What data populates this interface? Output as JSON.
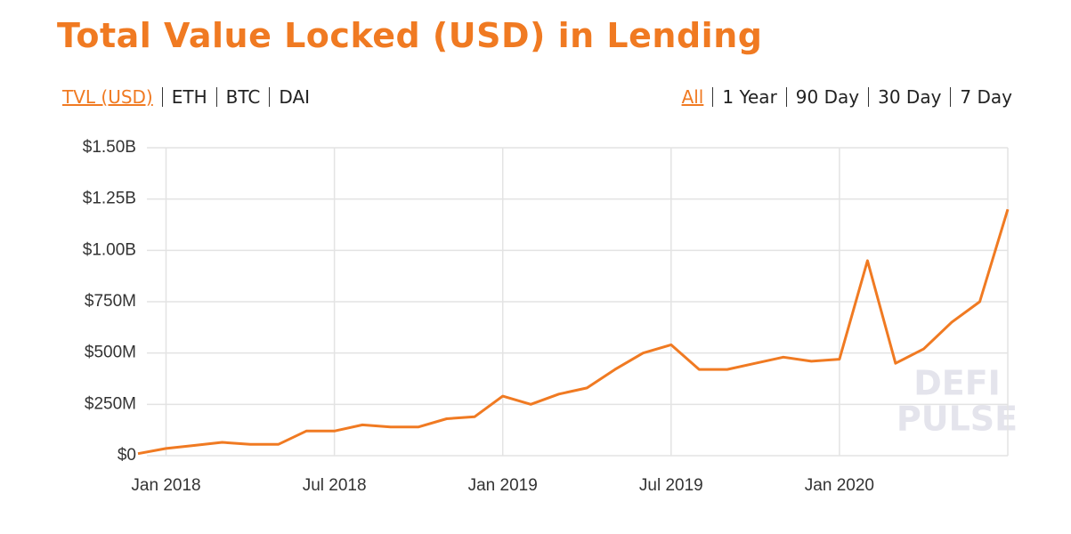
{
  "chart_data": {
    "type": "line",
    "title": "Total Value Locked (USD) in Lending",
    "x": [
      "2017-12",
      "2018-01",
      "2018-02",
      "2018-03",
      "2018-04",
      "2018-05",
      "2018-06",
      "2018-07",
      "2018-08",
      "2018-09",
      "2018-10",
      "2018-11",
      "2018-12",
      "2019-01",
      "2019-02",
      "2019-03",
      "2019-04",
      "2019-05",
      "2019-06",
      "2019-07",
      "2019-08",
      "2019-09",
      "2019-10",
      "2019-11",
      "2019-12",
      "2020-01",
      "2020-02",
      "2020-03",
      "2020-04",
      "2020-05",
      "2020-06",
      "2020-07"
    ],
    "series": [
      {
        "name": "TVL (USD)",
        "color": "#f07a22",
        "values": [
          10000000,
          35000000,
          50000000,
          65000000,
          55000000,
          55000000,
          120000000,
          120000000,
          150000000,
          140000000,
          140000000,
          180000000,
          190000000,
          290000000,
          250000000,
          300000000,
          330000000,
          420000000,
          500000000,
          540000000,
          420000000,
          420000000,
          450000000,
          480000000,
          460000000,
          470000000,
          950000000,
          450000000,
          520000000,
          650000000,
          750000000,
          1200000000
        ]
      }
    ],
    "xlim": [
      "2017-12",
      "2020-07"
    ],
    "xticks": [
      {
        "value": "2018-01",
        "label": "Jan 2018"
      },
      {
        "value": "2018-07",
        "label": "Jul 2018"
      },
      {
        "value": "2019-01",
        "label": "Jan 2019"
      },
      {
        "value": "2019-07",
        "label": "Jul 2019"
      },
      {
        "value": "2020-01",
        "label": "Jan 2020"
      }
    ],
    "ylim": [
      0,
      1500000000
    ],
    "yticks": [
      {
        "value": 0,
        "label": "$0"
      },
      {
        "value": 250000000,
        "label": "$250M"
      },
      {
        "value": 500000000,
        "label": "$500M"
      },
      {
        "value": 750000000,
        "label": "$750M"
      },
      {
        "value": 1000000000,
        "label": "$1.00B"
      },
      {
        "value": 1250000000,
        "label": "$1.25B"
      },
      {
        "value": 1500000000,
        "label": "$1.50B"
      }
    ],
    "grid": true,
    "watermark": [
      "DEFI",
      "PULSE"
    ]
  },
  "controls": {
    "metrics": [
      "TVL (USD)",
      "ETH",
      "BTC",
      "DAI"
    ],
    "ranges": [
      "All",
      "1 Year",
      "90 Day",
      "30 Day",
      "7 Day"
    ],
    "active_metric": 0,
    "active_range": 0
  }
}
